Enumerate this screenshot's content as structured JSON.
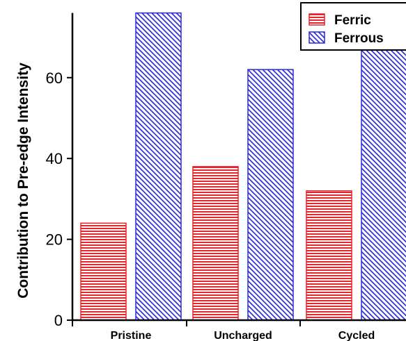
{
  "chart_data": {
    "type": "bar",
    "title": "",
    "xlabel": "",
    "ylabel": "Contribution to Pre-edge Intensity",
    "categories": [
      "Pristine",
      "Uncharged",
      "Cycled"
    ],
    "series": [
      {
        "name": "Ferric",
        "values": [
          24,
          38,
          32
        ],
        "color": "#e8232a",
        "pattern": "horizontal-lines"
      },
      {
        "name": "Ferrous",
        "values": [
          76,
          62,
          68
        ],
        "color": "#2b2bd6",
        "pattern": "diagonal-lines"
      }
    ],
    "ylim": [
      0,
      76
    ],
    "yticks": [
      0,
      20,
      40,
      60
    ],
    "grid": false,
    "legend": "top-right"
  }
}
